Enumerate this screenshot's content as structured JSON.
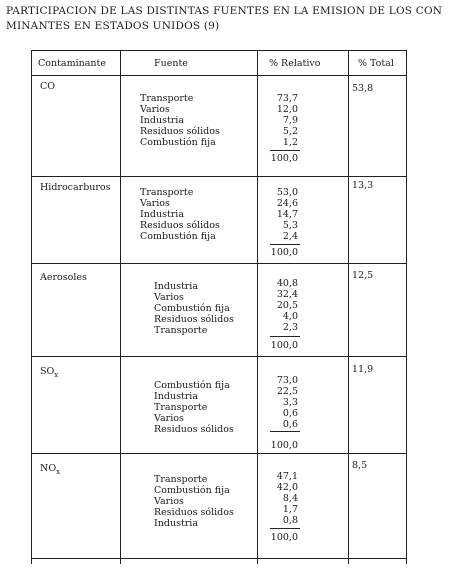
{
  "title": {
    "line1": "PARTICIPACION DE LAS DISTINTAS FUENTES EN LA EMISION DE LOS CON",
    "line2": "MINANTES EN ESTADOS UNIDOS (9)"
  },
  "headers": {
    "contaminante": "Contaminante",
    "fuente": "Fuente",
    "relativo": "% Relativo",
    "total": "% Total"
  },
  "groups": [
    {
      "name": "CO",
      "subscript": "",
      "total": "53,8",
      "rows": [
        {
          "fuente": "Transporte",
          "valor": "73,7"
        },
        {
          "fuente": "Varios",
          "valor": "12,0"
        },
        {
          "fuente": "Industria",
          "valor": "7,9"
        },
        {
          "fuente": "Residuos sólidos",
          "valor": "5,2"
        },
        {
          "fuente": "Combustión fija",
          "valor": "1,2"
        }
      ],
      "suma": "100,0"
    },
    {
      "name": "Hidrocarburos",
      "subscript": "",
      "total": "13,3",
      "rows": [
        {
          "fuente": "Transporte",
          "valor": "53,0"
        },
        {
          "fuente": "Varios",
          "valor": "24,6"
        },
        {
          "fuente": "Industria",
          "valor": "14,7"
        },
        {
          "fuente": "Residuos sólidos",
          "valor": "5,3"
        },
        {
          "fuente": "Combustión fija",
          "valor": "2,4"
        }
      ],
      "suma": "100,0"
    },
    {
      "name": "Aerosoles",
      "subscript": "",
      "total": "12,5",
      "rows": [
        {
          "fuente": "Industria",
          "valor": "40,8"
        },
        {
          "fuente": "Varios",
          "valor": "32,4"
        },
        {
          "fuente": "Combustión fija",
          "valor": "20,5"
        },
        {
          "fuente": "Residuos sólidos",
          "valor": "4,0"
        },
        {
          "fuente": "Transporte",
          "valor": "2,3"
        }
      ],
      "suma": "100,0"
    },
    {
      "name": "SO",
      "subscript": "x",
      "total": "11,9",
      "rows": [
        {
          "fuente": "Combustión fija",
          "valor": "73,0"
        },
        {
          "fuente": "Industria",
          "valor": "22,5"
        },
        {
          "fuente": "Transporte",
          "valor": "3,3"
        },
        {
          "fuente": "Varios",
          "valor": "0,6"
        },
        {
          "fuente": "Residuos sólidos",
          "valor": "0,6"
        }
      ],
      "suma": "100,0"
    },
    {
      "name": "NO",
      "subscript": "x",
      "total": "8,5",
      "rows": [
        {
          "fuente": "Transporte",
          "valor": "47,1"
        },
        {
          "fuente": "Combustión fija",
          "valor": "42,0"
        },
        {
          "fuente": "Varios",
          "valor": "8,4"
        },
        {
          "fuente": "Residuos sólidos",
          "valor": "1,7"
        },
        {
          "fuente": "Industria",
          "valor": "0,8"
        }
      ],
      "suma": "100,0"
    }
  ]
}
